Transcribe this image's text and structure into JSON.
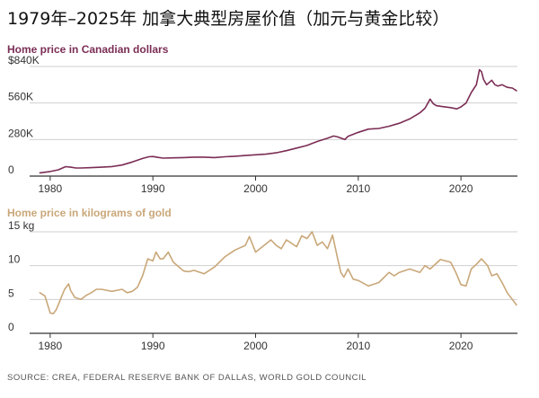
{
  "title": "1979年–2025年 加拿大典型房屋价值（加元与黄金比较）",
  "source": "SOURCE: CREA, FEDERAL RESERVE BANK OF DALLAS, WORLD GOLD COUNCIL",
  "colors": {
    "cad": "#7b2d55",
    "gold": "#c9a779",
    "grid": "#cfcfcf",
    "axis": "#333333"
  },
  "chart_data": [
    {
      "type": "line",
      "title": "Home price in Canadian dollars",
      "xlabel": "",
      "ylabel": "",
      "xlim": [
        1978,
        2025.5
      ],
      "ylim": [
        0,
        840000
      ],
      "x_ticks": [
        1980,
        1990,
        2000,
        2010,
        2020
      ],
      "x_tick_labels": [
        "1980",
        "1990",
        "2000",
        "2010",
        "2020"
      ],
      "y_ticks": [
        0,
        280000,
        560000,
        840000
      ],
      "y_tick_labels": [
        "0",
        "280K",
        "560K",
        "$840K"
      ],
      "series": [
        {
          "name": "Home price in Canadian dollars",
          "x": [
            1979,
            1980,
            1980.8,
            1981.5,
            1982,
            1982.5,
            1983,
            1984,
            1985,
            1986,
            1987,
            1988,
            1989,
            1989.6,
            1990,
            1990.5,
            1991,
            1992,
            1993,
            1994,
            1995,
            1996,
            1997,
            1998,
            1999,
            2000,
            2001,
            2002,
            2003,
            2004,
            2005,
            2006,
            2007,
            2007.6,
            2008,
            2008.7,
            2009,
            2010,
            2011,
            2012,
            2013,
            2014,
            2015,
            2016,
            2016.5,
            2017,
            2017.3,
            2017.6,
            2018,
            2019,
            2019.6,
            2020,
            2020.5,
            2021,
            2021.5,
            2021.8,
            2022,
            2022.2,
            2022.5,
            2023,
            2023.3,
            2023.6,
            2024,
            2024.5,
            2025,
            2025.4
          ],
          "values": [
            25000,
            35000,
            48000,
            72000,
            68000,
            62000,
            62000,
            65000,
            68000,
            73000,
            85000,
            108000,
            135000,
            148000,
            150000,
            143000,
            138000,
            140000,
            142000,
            145000,
            145000,
            142000,
            148000,
            152000,
            158000,
            163000,
            168000,
            178000,
            195000,
            215000,
            235000,
            265000,
            290000,
            307000,
            300000,
            280000,
            305000,
            335000,
            360000,
            365000,
            382000,
            405000,
            438000,
            485000,
            520000,
            590000,
            555000,
            540000,
            535000,
            525000,
            515000,
            530000,
            560000,
            640000,
            700000,
            815000,
            800000,
            740000,
            700000,
            735000,
            700000,
            690000,
            700000,
            680000,
            675000,
            655000
          ]
        }
      ]
    },
    {
      "type": "line",
      "title": "Home price in kilograms of gold",
      "xlabel": "",
      "ylabel": "",
      "xlim": [
        1978,
        2025.5
      ],
      "ylim": [
        0,
        15
      ],
      "x_ticks": [
        1980,
        1990,
        2000,
        2010,
        2020
      ],
      "x_tick_labels": [
        "1980",
        "1990",
        "2000",
        "2010",
        "2020"
      ],
      "y_ticks": [
        0,
        5,
        10,
        15
      ],
      "y_tick_labels": [
        "0",
        "5",
        "10",
        "15 kg"
      ],
      "series": [
        {
          "name": "Home price in kilograms of gold",
          "x": [
            1979,
            1979.5,
            1980,
            1980.3,
            1980.6,
            1981,
            1981.4,
            1981.8,
            1982,
            1982.4,
            1983,
            1983.5,
            1984,
            1984.5,
            1985,
            1986,
            1987,
            1987.5,
            1988,
            1988.5,
            1989,
            1989.5,
            1990,
            1990.3,
            1990.7,
            1991,
            1991.5,
            1992,
            1993,
            1993.5,
            1994,
            1995,
            1996,
            1997,
            1998,
            1999,
            1999.4,
            2000,
            2001,
            2001.5,
            2002,
            2002.5,
            2003,
            2004,
            2004.5,
            2005,
            2005.5,
            2006,
            2006.5,
            2007,
            2007.5,
            2008,
            2008.3,
            2008.6,
            2009,
            2009.5,
            2010,
            2011,
            2012,
            2013,
            2013.5,
            2014,
            2015,
            2016,
            2016.5,
            2017,
            2018,
            2019,
            2019.5,
            2020,
            2020.5,
            2021,
            2021.5,
            2022,
            2022.3,
            2022.6,
            2023,
            2023.5,
            2024,
            2024.5,
            2025,
            2025.4
          ],
          "values": [
            6.0,
            5.5,
            3.0,
            2.9,
            3.5,
            5.0,
            6.5,
            7.3,
            6.3,
            5.3,
            5.0,
            5.6,
            6.0,
            6.5,
            6.5,
            6.2,
            6.5,
            6.0,
            6.2,
            6.8,
            8.5,
            11.0,
            10.7,
            12.0,
            11.0,
            11.0,
            12.0,
            10.5,
            9.2,
            9.1,
            9.3,
            8.8,
            9.8,
            11.3,
            12.3,
            13.0,
            14.3,
            12.0,
            13.2,
            13.8,
            13.0,
            12.5,
            13.8,
            12.8,
            14.4,
            14.0,
            15.0,
            13.0,
            13.5,
            12.5,
            14.5,
            11.0,
            9.0,
            8.3,
            9.5,
            8.0,
            7.8,
            7.0,
            7.5,
            9.0,
            8.5,
            9.0,
            9.5,
            9.0,
            10.0,
            9.5,
            10.9,
            10.5,
            9.0,
            7.2,
            7.0,
            9.5,
            10.2,
            11.0,
            10.5,
            10.0,
            8.5,
            8.8,
            7.5,
            6.0,
            5.0,
            4.2
          ]
        }
      ]
    }
  ]
}
